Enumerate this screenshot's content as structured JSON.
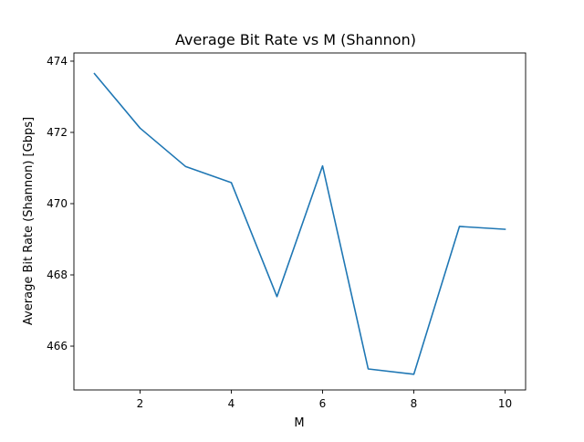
{
  "chart_data": {
    "type": "line",
    "title": "Average Bit Rate vs M (Shannon)",
    "xlabel": "M",
    "ylabel": "Average Bit Rate (Shannon) [Gbps]",
    "xlim": [
      0.55,
      10.45
    ],
    "ylim": [
      464.77,
      474.23
    ],
    "x_ticks": [
      2,
      4,
      6,
      8,
      10
    ],
    "y_ticks": [
      466,
      468,
      470,
      472,
      474
    ],
    "grid": false,
    "legend": "none",
    "line_color": "#1f77b4",
    "series": [
      {
        "x": [
          1,
          2,
          3,
          4,
          5,
          6,
          7,
          8,
          9,
          10
        ],
        "values": [
          473.65,
          472.12,
          471.04,
          470.59,
          467.39,
          471.06,
          465.36,
          465.21,
          469.36,
          469.28
        ]
      }
    ]
  }
}
